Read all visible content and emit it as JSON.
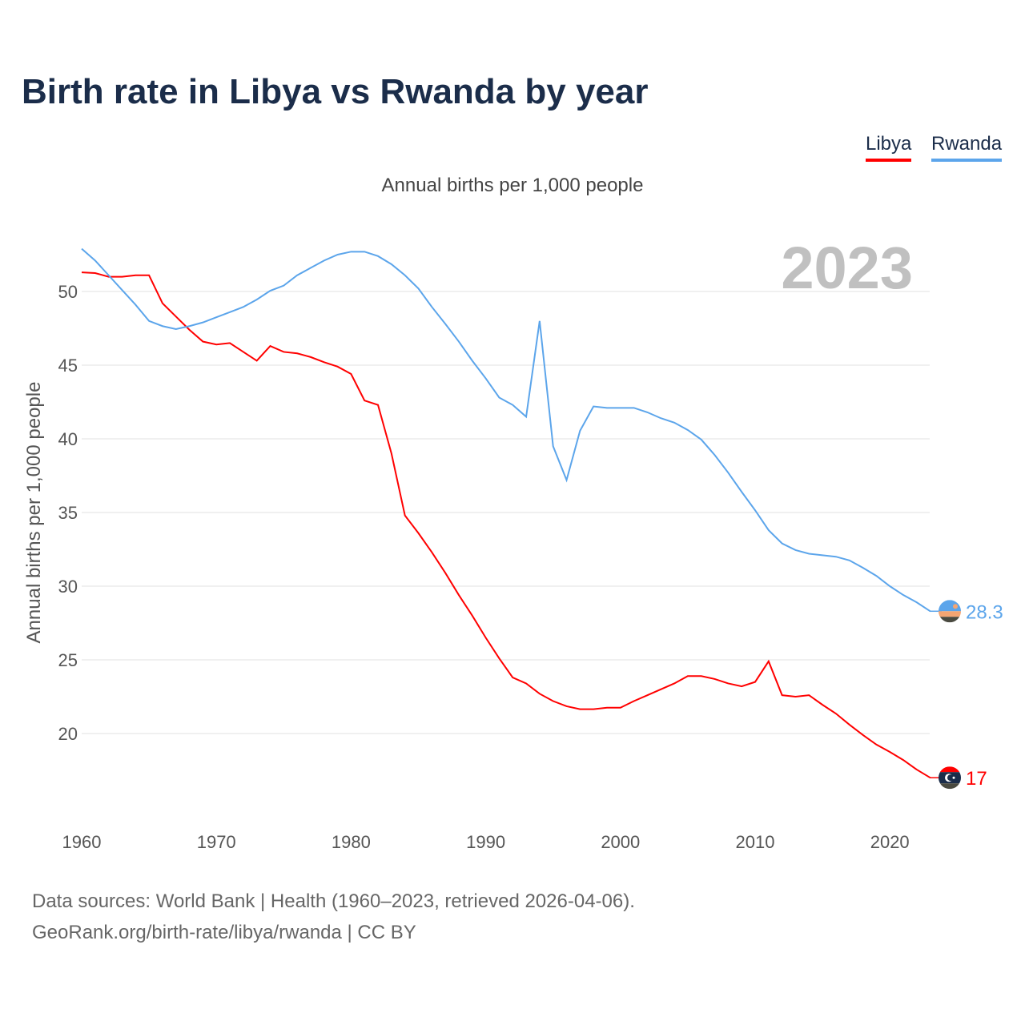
{
  "title": "Birth rate in Libya vs Rwanda by year",
  "subtitle": "Annual births per 1,000 people",
  "footer": {
    "line1": "Data sources: World Bank | Health (1960–2023, retrieved 2026-04-06).",
    "line2": "GeoRank.org/birth-rate/libya/rwanda | CC BY"
  },
  "chart_data": {
    "type": "line",
    "title": "Birth rate in Libya vs Rwanda by year",
    "ylabel": "Annual births per 1,000 people",
    "xlabel": "",
    "year_watermark": "2023",
    "xlim": [
      1960,
      2023
    ],
    "ylim": [
      15,
      53
    ],
    "yticks": [
      20,
      25,
      30,
      35,
      40,
      45,
      50
    ],
    "xticks": [
      1960,
      1970,
      1980,
      1990,
      2000,
      2010,
      2020
    ],
    "grid": true,
    "legend_position": "top-right",
    "x": [
      1960,
      1961,
      1962,
      1963,
      1964,
      1965,
      1966,
      1967,
      1968,
      1969,
      1970,
      1971,
      1972,
      1973,
      1974,
      1975,
      1976,
      1977,
      1978,
      1979,
      1980,
      1981,
      1982,
      1983,
      1984,
      1985,
      1986,
      1987,
      1988,
      1989,
      1990,
      1991,
      1992,
      1993,
      1994,
      1995,
      1996,
      1997,
      1998,
      1999,
      2000,
      2001,
      2002,
      2003,
      2004,
      2005,
      2006,
      2007,
      2008,
      2009,
      2010,
      2011,
      2012,
      2013,
      2014,
      2015,
      2016,
      2017,
      2018,
      2019,
      2020,
      2021,
      2022,
      2023
    ],
    "series": [
      {
        "name": "Libya",
        "color": "#ff0000",
        "end_label": "17",
        "values": [
          51.3,
          51.25,
          51.0,
          51.0,
          51.1,
          51.1,
          49.2,
          48.3,
          47.4,
          46.6,
          46.4,
          46.5,
          45.9,
          45.3,
          46.3,
          45.9,
          45.8,
          45.55,
          45.2,
          44.9,
          44.4,
          42.6,
          42.3,
          39.0,
          34.8,
          33.6,
          32.3,
          30.9,
          29.4,
          28.0,
          26.5,
          25.1,
          23.8,
          23.4,
          22.7,
          22.2,
          21.85,
          21.65,
          21.65,
          21.75,
          21.75,
          22.2,
          22.6,
          23.0,
          23.4,
          23.9,
          23.9,
          23.7,
          23.4,
          23.2,
          23.5,
          24.9,
          22.6,
          22.5,
          22.6,
          21.95,
          21.35,
          20.6,
          19.9,
          19.25,
          18.75,
          18.2,
          17.55,
          17.0
        ]
      },
      {
        "name": "Rwanda",
        "color": "#5ca5eb",
        "end_label": "28.3",
        "values": [
          52.9,
          52.1,
          51.1,
          50.1,
          49.1,
          48.0,
          47.65,
          47.45,
          47.65,
          47.9,
          48.25,
          48.6,
          48.95,
          49.45,
          50.05,
          50.4,
          51.1,
          51.6,
          52.1,
          52.5,
          52.7,
          52.7,
          52.4,
          51.85,
          51.1,
          50.2,
          48.95,
          47.8,
          46.6,
          45.3,
          44.1,
          42.8,
          42.3,
          41.5,
          48.0,
          39.5,
          37.2,
          40.55,
          42.2,
          42.1,
          42.1,
          42.1,
          41.8,
          41.4,
          41.1,
          40.6,
          39.95,
          38.9,
          37.7,
          36.4,
          35.15,
          33.8,
          32.9,
          32.45,
          32.2,
          32.1,
          32.0,
          31.75,
          31.25,
          30.7,
          30.0,
          29.4,
          28.9,
          28.3
        ]
      }
    ]
  }
}
